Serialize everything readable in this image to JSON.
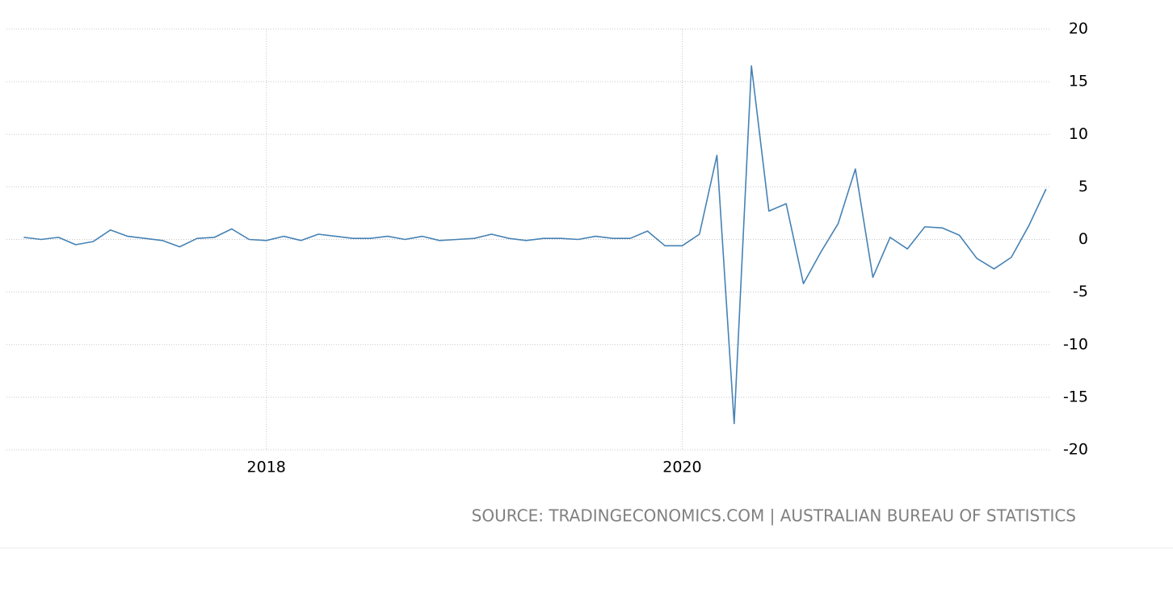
{
  "chart_data": {
    "type": "line",
    "source": "SOURCE: TRADINGECONOMICS.COM | AUSTRALIAN BUREAU OF STATISTICS",
    "x": [
      2016.833,
      2016.917,
      2017,
      2017.083,
      2017.167,
      2017.25,
      2017.333,
      2017.417,
      2017.5,
      2017.583,
      2017.667,
      2017.75,
      2017.833,
      2017.917,
      2018,
      2018.083,
      2018.167,
      2018.25,
      2018.333,
      2018.417,
      2018.5,
      2018.583,
      2018.667,
      2018.75,
      2018.833,
      2018.917,
      2019,
      2019.083,
      2019.167,
      2019.25,
      2019.333,
      2019.417,
      2019.5,
      2019.583,
      2019.667,
      2019.75,
      2019.833,
      2019.917,
      2020,
      2020.083,
      2020.167,
      2020.25,
      2020.333,
      2020.417,
      2020.5,
      2020.583,
      2020.667,
      2020.75,
      2020.833,
      2020.917,
      2021,
      2021.083,
      2021.167,
      2021.25,
      2021.333,
      2021.417,
      2021.5,
      2021.583,
      2021.667,
      2021.75
    ],
    "series": [
      {
        "color": "#4682b4",
        "values": [
          0.2,
          0,
          0.2,
          -0.5,
          -0.2,
          0.9,
          0.3,
          0.1,
          -0.1,
          -0.7,
          0.1,
          0.2,
          1.0,
          0,
          -0.1,
          0.3,
          -0.1,
          0.5,
          0.3,
          0.1,
          0.1,
          0.3,
          0,
          0.3,
          -0.1,
          0,
          0.1,
          0.5,
          0.1,
          -0.1,
          0.1,
          0.1,
          0,
          0.3,
          0.1,
          0.1,
          0.8,
          -0.6,
          -0.6,
          0.5,
          8.0,
          -17.5,
          16.5,
          2.7,
          3.4,
          -4.2,
          -1.2,
          1.5,
          6.7,
          -3.6,
          0.2,
          -0.9,
          1.2,
          1.1,
          0.4,
          -1.8,
          -2.8,
          -1.7,
          1.3,
          4.8
        ]
      }
    ],
    "xlim": [
      2016.75,
      2021.77
    ],
    "xticks": [
      2018,
      2020
    ],
    "ylim": [
      -20,
      20
    ],
    "yticks": [
      -20,
      -15,
      -10,
      -5,
      0,
      5,
      10,
      15,
      20
    ],
    "grid": true
  }
}
